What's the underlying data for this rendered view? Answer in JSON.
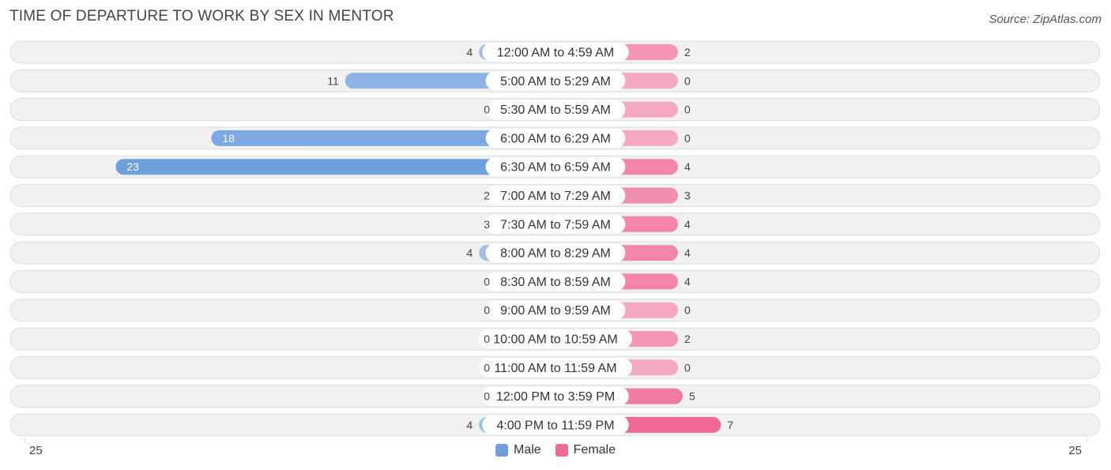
{
  "title": "TIME OF DEPARTURE TO WORK BY SEX IN MENTOR",
  "source": "Source: ZipAtlas.com",
  "colors": {
    "male": "#6fa0dc",
    "male_light": "#a7c5ea",
    "female": "#f06a95",
    "female_light": "#f5a8c1",
    "row_bg": "#f1f1f1",
    "row_border": "#dcdcdc"
  },
  "legend": {
    "male_label": "Male",
    "female_label": "Female"
  },
  "axis": {
    "left_label": "25",
    "right_label": "25"
  },
  "chart_data": {
    "type": "bar",
    "orientation": "horizontal-diverging",
    "title": "TIME OF DEPARTURE TO WORK BY SEX IN MENTOR",
    "categories": [
      "12:00 AM to 4:59 AM",
      "5:00 AM to 5:29 AM",
      "5:30 AM to 5:59 AM",
      "6:00 AM to 6:29 AM",
      "6:30 AM to 6:59 AM",
      "7:00 AM to 7:29 AM",
      "7:30 AM to 7:59 AM",
      "8:00 AM to 8:29 AM",
      "8:30 AM to 8:59 AM",
      "9:00 AM to 9:59 AM",
      "10:00 AM to 10:59 AM",
      "11:00 AM to 11:59 AM",
      "12:00 PM to 3:59 PM",
      "4:00 PM to 11:59 PM"
    ],
    "series": [
      {
        "name": "Male",
        "values": [
          4,
          11,
          0,
          18,
          23,
          2,
          3,
          4,
          0,
          0,
          0,
          0,
          0,
          4
        ]
      },
      {
        "name": "Female",
        "values": [
          2,
          0,
          0,
          0,
          4,
          3,
          4,
          4,
          4,
          0,
          2,
          0,
          5,
          7
        ]
      }
    ],
    "xlim": [
      -25,
      25
    ],
    "legend_position": "bottom-center"
  }
}
